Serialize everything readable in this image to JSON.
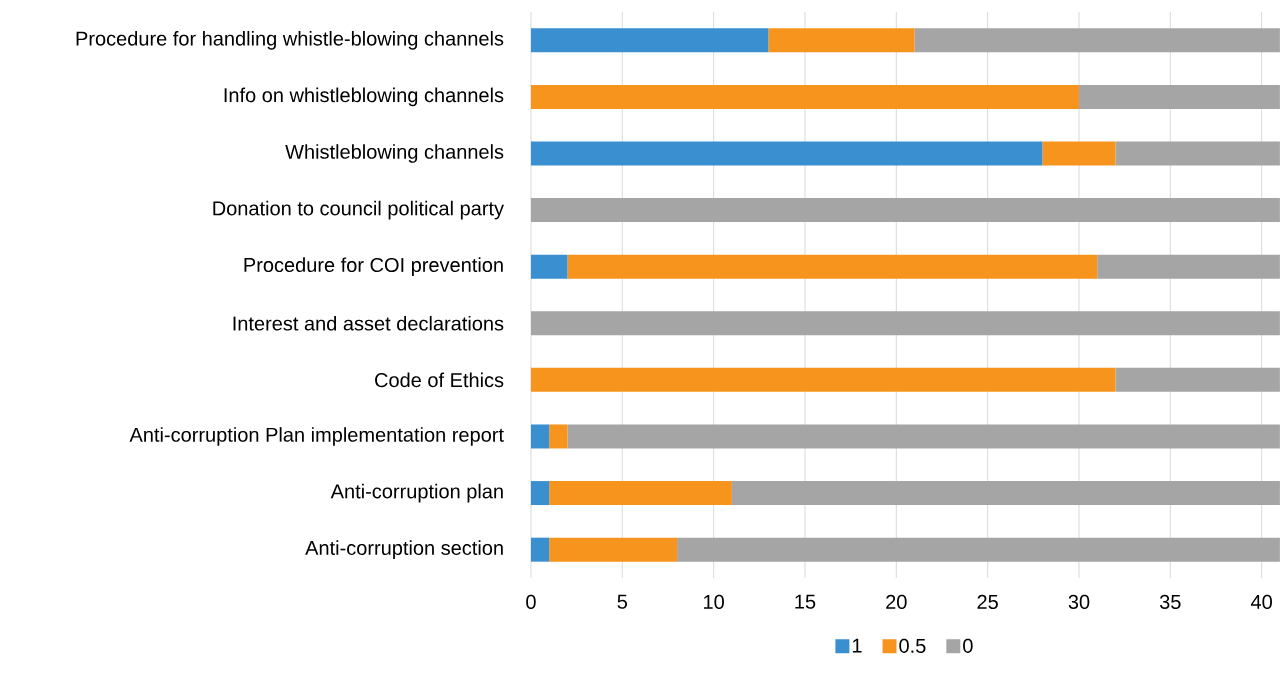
{
  "chart_data": {
    "type": "bar",
    "orientation": "horizontal",
    "stacked": true,
    "categories": [
      "Procedure for handling whistle-blowing channels",
      "Info on whistleblowing channels",
      "Whistleblowing channels",
      "Donation to council political party",
      "Procedure for COI prevention",
      "Interest and asset declarations",
      "Code of Ethics",
      "Anti-corruption Plan implementation report",
      "Anti-corruption plan",
      "Anti-corruption section"
    ],
    "series": [
      {
        "name": "1",
        "color": "#3a8fd0",
        "values": [
          13,
          0,
          28,
          0,
          2,
          0,
          0,
          1,
          1,
          1
        ]
      },
      {
        "name": "0.5",
        "color": "#f7941d",
        "values": [
          8,
          30,
          4,
          0,
          29,
          0,
          32,
          1,
          10,
          7
        ]
      },
      {
        "name": "0",
        "color": "#a5a5a5",
        "values": [
          20,
          11,
          9,
          41,
          10,
          41,
          9,
          39,
          30,
          33
        ]
      }
    ],
    "xlim": [
      0,
      41
    ],
    "xticks": [
      0,
      5,
      10,
      15,
      20,
      25,
      30,
      35,
      40
    ],
    "grid": "x",
    "legend": "bottom"
  }
}
